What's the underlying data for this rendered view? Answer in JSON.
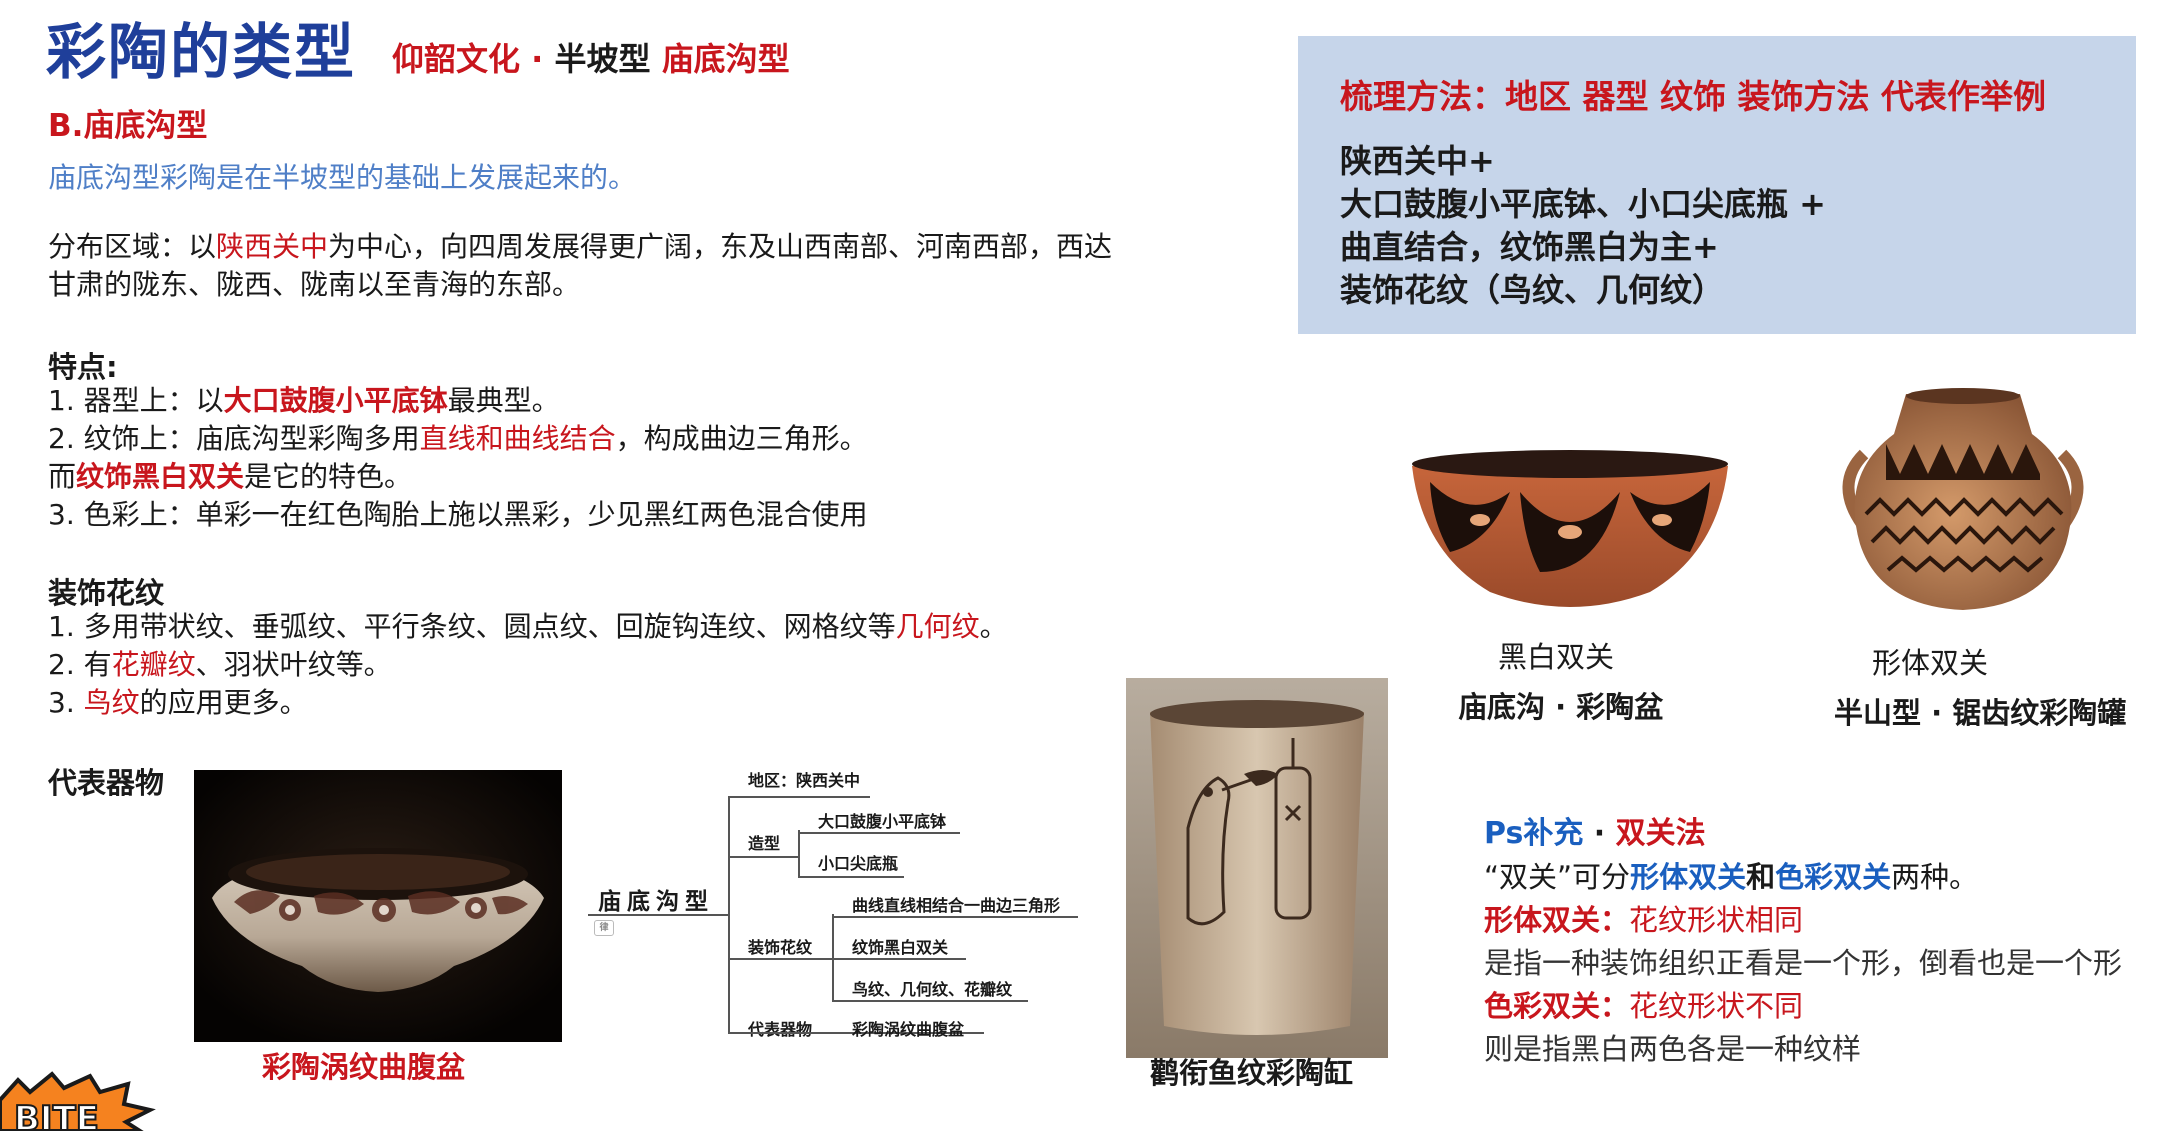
{
  "title": {
    "main": "彩陶的类型",
    "sub_part1": "仰韶文化 · ",
    "sub_part2": "半坡型 ",
    "sub_part3": "庙底沟型"
  },
  "section_heading": "B.庙底沟型",
  "intro": "庙底沟型彩陶是在半坡型的基础上发展起来的。",
  "distribution": {
    "prefix": "分布区域：以",
    "highlight": "陕西关中",
    "line1_rest": "为中心，向四周发展得更广阔，东及山西南部、河南西部，西达",
    "line2": "甘肃的陇东、陇西、陇南以至青海的东部。"
  },
  "features": {
    "title": "特点:",
    "item1_prefix": "1.  器型上：以",
    "item1_highlight": "大口鼓腹小平底钵",
    "item1_suffix": "最典型。",
    "item2_prefix": "2. 纹饰上：庙底沟型彩陶多用",
    "item2_highlight": "直线和曲线结合",
    "item2_suffix": "，构成曲边三角形。",
    "item2b_prefix": "而",
    "item2b_highlight": "纹饰黑白双关",
    "item2b_suffix": "是它的特色。",
    "item3": "3. 色彩上：单彩一在红色陶胎上施以黑彩，少见黑红两色混合使用"
  },
  "decor": {
    "title": "装饰花纹",
    "item1_prefix": "1.  多用带状纹、垂弧纹、平行条纹、圆点纹、回旋钩连纹、网格纹等",
    "item1_highlight": "几何纹",
    "item1_suffix": "。",
    "item2_prefix": "2. 有",
    "item2_highlight": "花瓣纹",
    "item2_suffix": "、羽状叶纹等。",
    "item3_prefix": "3. ",
    "item3_highlight": "鸟纹",
    "item3_suffix": "的应用更多。"
  },
  "representative_title": "代表器物",
  "captions": {
    "basin": "彩陶涡纹曲腹盆",
    "jar": "鹳衔鱼纹彩陶缸",
    "bowl_line1": "黑白双关",
    "bowl_line2": "庙底沟 · 彩陶盆",
    "pot_line1": "形体双关",
    "pot_line2": "半山型 · 锯齿纹彩陶罐"
  },
  "mindmap": {
    "root": "庙底沟型",
    "root_tag": "律",
    "region": "地区：陕西关中",
    "shape_label": "造型",
    "shape_items": [
      "大口鼓腹小平底钵",
      "小口尖底瓶"
    ],
    "decor_label": "装饰花纹",
    "decor_items": [
      "曲线直线相结合一曲边三角形",
      "纹饰黑白双关",
      "鸟纹、几何纹、花瓣纹"
    ],
    "rep_label": "代表器物",
    "rep_item": "彩陶涡纹曲腹盆"
  },
  "summary": {
    "title": "梳理方法：地区 器型 纹饰 装饰方法 代表作举例",
    "lines": [
      "陕西关中+",
      "大口鼓腹小平底钵、小口尖底瓶 +",
      "曲直结合，纹饰黑白为主+",
      "装饰花纹（鸟纹、几何纹）"
    ]
  },
  "ps": {
    "title_part1": "Ps补充",
    "title_part2": " · ",
    "title_part3": "双关法",
    "line1_p1": "“双关”可分",
    "line1_p2": "形体双关",
    "line1_p3": "和",
    "line1_p4": "色彩双关",
    "line1_p5": "两种。",
    "line2_label": "形体双关：",
    "line2_text": "花纹形状相同",
    "line3": "是指一种装饰组织正看是一个形，倒看也是一个形",
    "line4_label": "色彩双关：",
    "line4_text": "花纹形状不同",
    "line5": "则是指黑白两色各是一种纹样"
  },
  "sticker_text": "BITE",
  "colors": {
    "title_blue": "#1f3f9a",
    "accent_red": "#c8161d",
    "intro_blue": "#4f7fc7",
    "box_bg": "#c6d5ea",
    "ps_blue": "#1a5fbf"
  }
}
